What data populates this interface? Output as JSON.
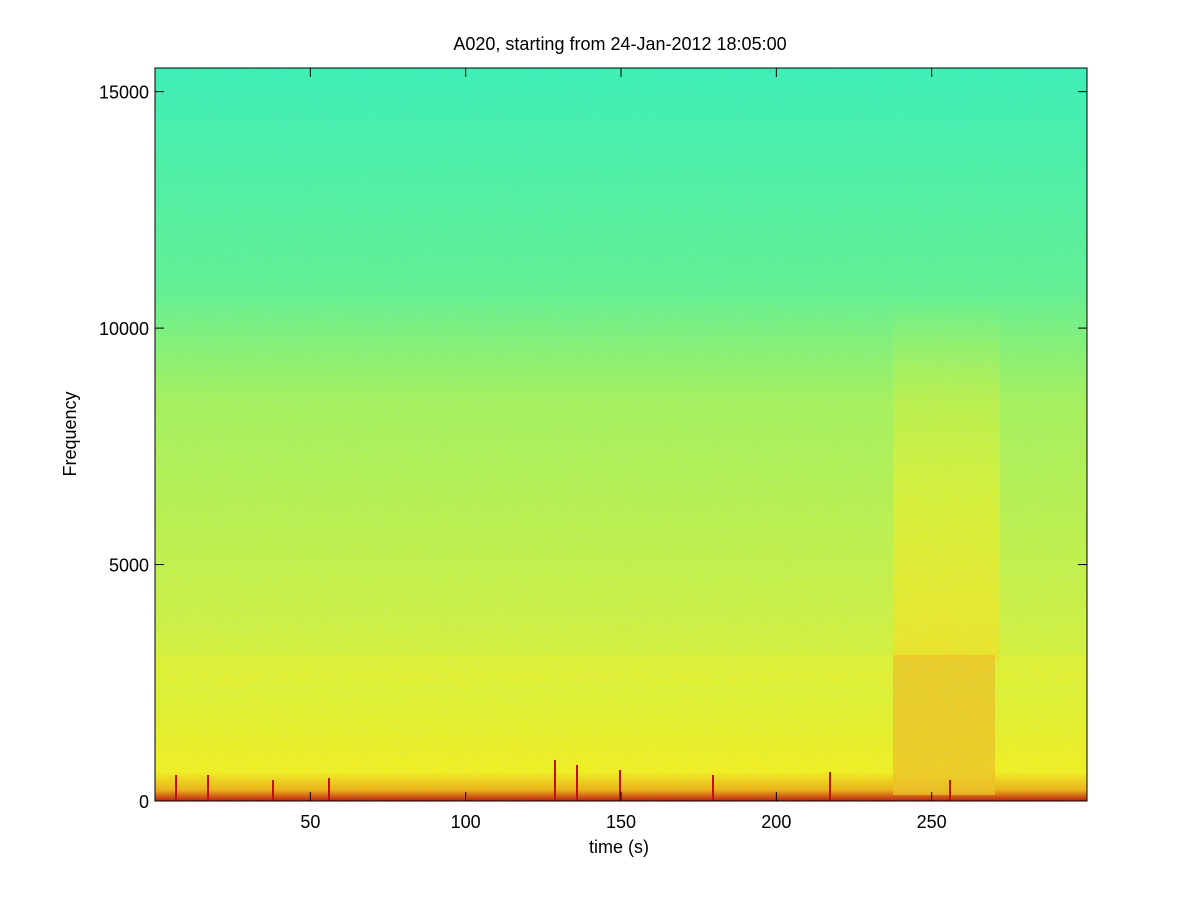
{
  "chart_data": {
    "type": "spectrogram",
    "title": "A020, starting from 24-Jan-2012 18:05:00",
    "x_label": "time (s)",
    "y_label": "Frequency",
    "xlim": [
      0,
      300
    ],
    "ylim": [
      0,
      15500
    ],
    "xticks": [
      50,
      100,
      150,
      200,
      250
    ],
    "yticks": [
      0,
      5000,
      10000,
      15000
    ]
  }
}
